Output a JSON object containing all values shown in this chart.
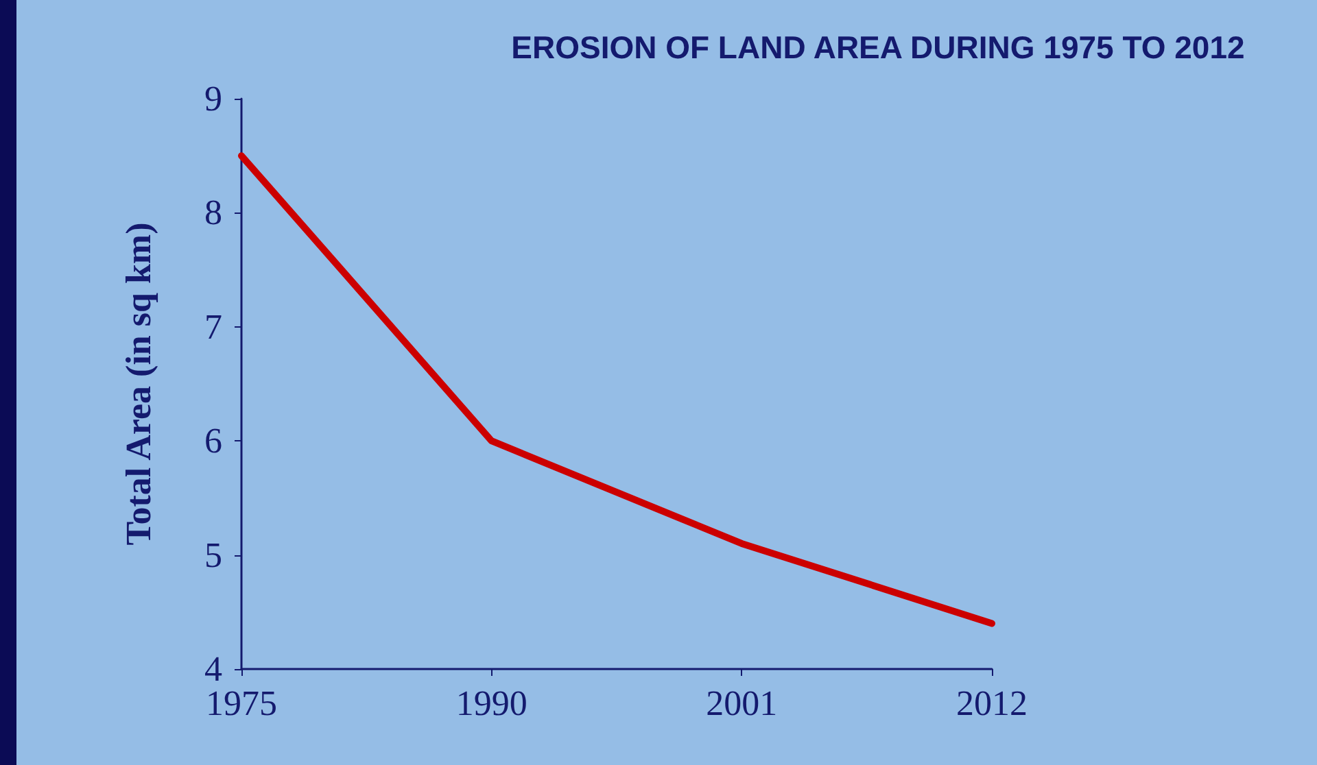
{
  "chart_data": {
    "type": "line",
    "title": "EROSION OF LAND AREA DURING 1975 TO 2012",
    "ylabel": "Total Area (in sq km)",
    "categories": [
      "1975",
      "1990",
      "2001",
      "2012"
    ],
    "series": [
      {
        "color": "#cc0000",
        "values": [
          8.5,
          6.0,
          5.1,
          4.4
        ]
      }
    ],
    "ylim": [
      4,
      9
    ],
    "yticks": [
      4,
      5,
      6,
      7,
      8,
      9
    ],
    "marker": "none",
    "line_style": "solid"
  }
}
